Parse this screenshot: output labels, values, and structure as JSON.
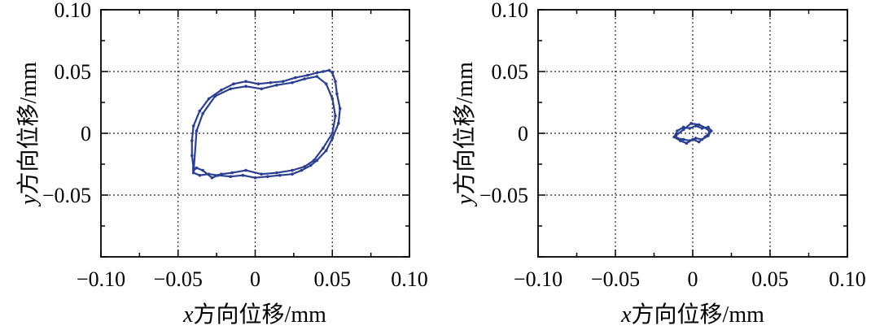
{
  "chart_data": [
    {
      "type": "line",
      "title": "",
      "xlabel_var": "x",
      "xlabel_rest": "方向位移/mm",
      "ylabel_var": "y",
      "ylabel_rest": "方向位移/mm",
      "xlim": [
        -0.1,
        0.1
      ],
      "ylim": [
        -0.1,
        0.1
      ],
      "xticks": [
        -0.1,
        -0.05,
        0,
        0.05,
        0.1
      ],
      "xtick_labels": [
        "−0.10",
        "−0.05",
        "0",
        "0.05",
        "0.10"
      ],
      "yticks": [
        -0.05,
        0,
        0.05,
        0.1
      ],
      "ytick_labels": [
        "−0.05",
        "0",
        "0.05",
        "0.10"
      ],
      "grid": true,
      "series": [
        {
          "name": "orbit",
          "color": "#2a3f92",
          "x": [
            -0.04,
            -0.036,
            -0.03,
            -0.024,
            -0.016,
            -0.008,
            0.0,
            0.008,
            0.016,
            0.024,
            0.03,
            0.036,
            0.04,
            0.046,
            0.05,
            0.054,
            0.055,
            0.053,
            0.052,
            0.05,
            0.048,
            0.044,
            0.04,
            0.034,
            0.026,
            0.018,
            0.01,
            0.002,
            -0.006,
            -0.014,
            -0.022,
            -0.03,
            -0.036,
            -0.04,
            -0.041,
            -0.041,
            -0.04,
            -0.04,
            -0.038,
            -0.034,
            -0.028,
            -0.022,
            -0.015,
            -0.006,
            0.004,
            0.014,
            0.024,
            0.032,
            0.038,
            0.044,
            0.05,
            0.052,
            0.05,
            0.046,
            0.04,
            0.032,
            0.024,
            0.014,
            0.004,
            -0.006,
            -0.016,
            -0.026,
            -0.034,
            -0.038
          ],
          "y": [
            -0.032,
            -0.034,
            -0.033,
            -0.034,
            -0.035,
            -0.034,
            -0.036,
            -0.035,
            -0.034,
            -0.033,
            -0.03,
            -0.026,
            -0.022,
            -0.014,
            -0.004,
            0.008,
            0.02,
            0.032,
            0.042,
            0.049,
            0.051,
            0.05,
            0.049,
            0.047,
            0.045,
            0.042,
            0.041,
            0.04,
            0.042,
            0.04,
            0.035,
            0.028,
            0.018,
            0.006,
            -0.006,
            -0.018,
            -0.028,
            -0.03,
            -0.028,
            -0.03,
            -0.036,
            -0.033,
            -0.032,
            -0.03,
            -0.033,
            -0.032,
            -0.03,
            -0.027,
            -0.022,
            -0.012,
            0.0,
            0.014,
            0.028,
            0.04,
            0.046,
            0.044,
            0.041,
            0.039,
            0.036,
            0.038,
            0.036,
            0.03,
            0.016,
            0.002
          ]
        }
      ]
    },
    {
      "type": "line",
      "title": "",
      "xlabel_var": "x",
      "xlabel_rest": "方向位移/mm",
      "ylabel_var": "y",
      "ylabel_rest": "方向位移/mm",
      "xlim": [
        -0.1,
        0.1
      ],
      "ylim": [
        -0.1,
        0.1
      ],
      "xticks": [
        -0.1,
        -0.05,
        0,
        0.05,
        0.1
      ],
      "xtick_labels": [
        "−0.10",
        "−0.05",
        "0",
        "0.05",
        "0.10"
      ],
      "yticks": [
        -0.05,
        0,
        0.05,
        0.1
      ],
      "ytick_labels": [
        "−0.05",
        "0",
        "0.05",
        "0.10"
      ],
      "grid": true,
      "series": [
        {
          "name": "orbit",
          "color": "#2a3f92",
          "x": [
            -0.01,
            -0.006,
            -0.002,
            0.002,
            0.006,
            0.01,
            0.012,
            0.01,
            0.006,
            0.002,
            -0.002,
            -0.006,
            -0.01,
            -0.012,
            -0.008,
            -0.004,
            0.0,
            0.004,
            0.008,
            0.011,
            0.009,
            0.004,
            -0.001,
            -0.006,
            -0.011
          ],
          "y": [
            -0.004,
            -0.005,
            -0.006,
            -0.004,
            -0.005,
            -0.002,
            0.002,
            0.005,
            0.004,
            0.006,
            0.004,
            0.005,
            0.002,
            -0.003,
            -0.006,
            -0.008,
            -0.005,
            -0.007,
            -0.003,
            0.001,
            0.004,
            0.007,
            0.008,
            0.003,
            -0.002
          ]
        }
      ]
    }
  ]
}
